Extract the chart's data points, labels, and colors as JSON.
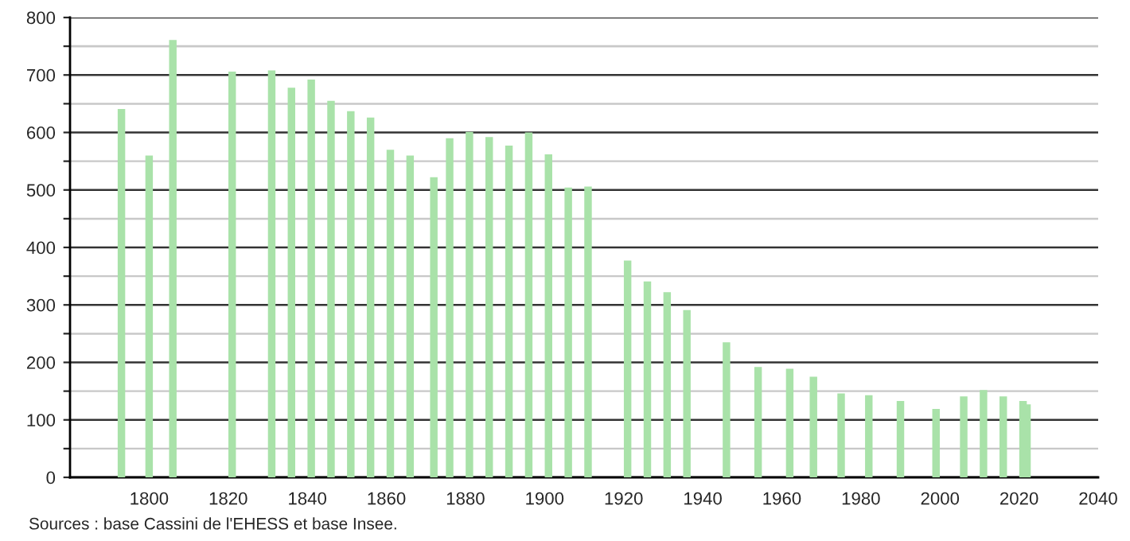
{
  "chart_data": {
    "type": "bar",
    "x": [
      1793,
      1800,
      1806,
      1821,
      1831,
      1836,
      1841,
      1846,
      1851,
      1856,
      1861,
      1866,
      1872,
      1876,
      1881,
      1886,
      1891,
      1896,
      1901,
      1906,
      1911,
      1921,
      1926,
      1931,
      1936,
      1946,
      1954,
      1962,
      1968,
      1975,
      1982,
      1990,
      1999,
      2006,
      2011,
      2016,
      2021,
      2022
    ],
    "values": [
      641,
      560,
      761,
      706,
      708,
      678,
      692,
      655,
      637,
      626,
      570,
      560,
      522,
      590,
      601,
      592,
      577,
      600,
      562,
      504,
      506,
      377,
      341,
      322,
      291,
      235,
      192,
      189,
      175,
      146,
      143,
      133,
      119,
      141,
      152,
      141,
      133,
      127
    ],
    "color": "#a9e2a9",
    "xlim": [
      1780,
      2040
    ],
    "xticks": [
      1800,
      1820,
      1840,
      1860,
      1880,
      1900,
      1920,
      1940,
      1960,
      1980,
      2000,
      2020,
      2040
    ],
    "ylim": [
      0,
      800
    ],
    "yticks": [
      0,
      {
        "value": 50,
        "label": null
      },
      100,
      {
        "value": 150,
        "label": null
      },
      200,
      {
        "value": 250,
        "label": null
      },
      300,
      {
        "value": 350,
        "label": null
      },
      400,
      {
        "value": 450,
        "label": null
      },
      500,
      {
        "value": 550,
        "label": null
      },
      600,
      {
        "value": 650,
        "label": null
      },
      700,
      {
        "value": 750,
        "label": null
      },
      800
    ],
    "grid": "y",
    "annotations": [
      "Sources : base Cassini de l'EHESS et base Insee."
    ]
  }
}
